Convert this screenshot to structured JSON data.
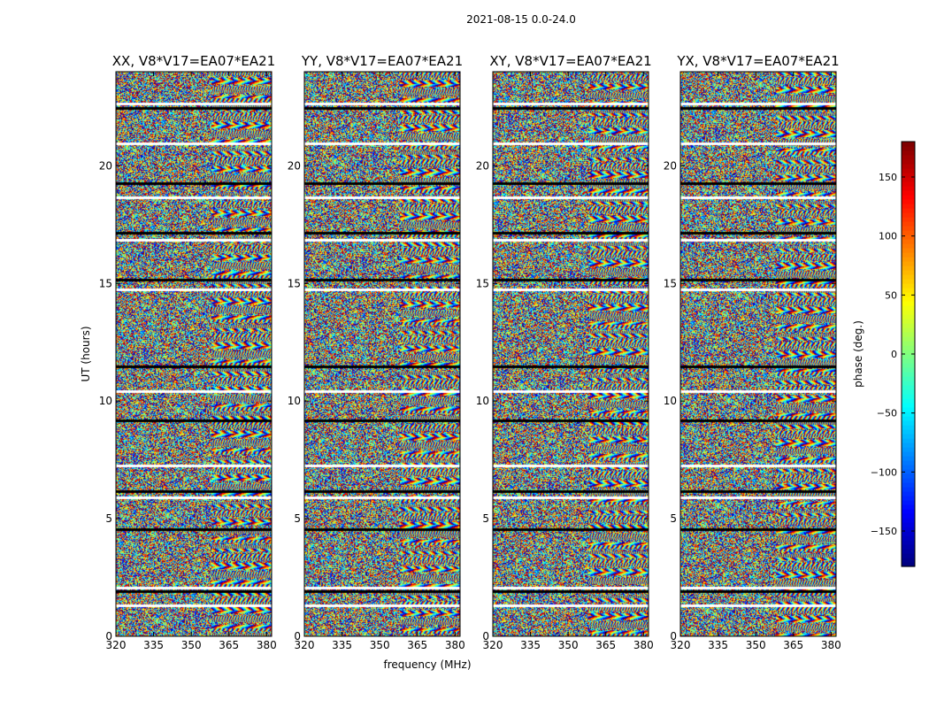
{
  "suptitle": "2021-08-15 0.0-24.0",
  "chart_data": {
    "type": "heatmap",
    "xlabel": "frequency (MHz)",
    "ylabel": "UT (hours)",
    "xlim": [
      320,
      382
    ],
    "ylim": [
      0,
      24
    ],
    "x_ticks": [
      "320",
      "335",
      "350",
      "365",
      "380"
    ],
    "x_tick_values": [
      320,
      335,
      350,
      365,
      380
    ],
    "y_ticks": [
      "0",
      "5",
      "10",
      "15",
      "20"
    ],
    "y_tick_values": [
      0,
      5,
      10,
      15,
      20
    ],
    "panels": [
      {
        "title": "XX, V8*V17=EA07*EA21"
      },
      {
        "title": "YY, V8*V17=EA07*EA21"
      },
      {
        "title": "XY, V8*V17=EA07*EA21"
      },
      {
        "title": "YX, V8*V17=EA07*EA21"
      }
    ],
    "colorbar": {
      "label": "phase (deg.)",
      "colormap": "jet",
      "range": [
        -180,
        180
      ],
      "ticks": [
        "150",
        "100",
        "50",
        "0",
        "−50",
        "−100",
        "−150"
      ],
      "tick_values": [
        150,
        100,
        50,
        0,
        -50,
        -100,
        -150
      ]
    },
    "flagged_rows_ut": [
      1.35,
      1.95,
      2.1,
      4.6,
      5.95,
      6.2,
      7.3,
      9.2,
      10.45,
      11.5,
      14.8,
      15.2,
      16.9,
      17.2,
      18.7,
      19.3,
      21.0,
      22.5,
      22.7
    ],
    "description_keep": "noisy phase fringes with horizontal flagged stripes"
  }
}
